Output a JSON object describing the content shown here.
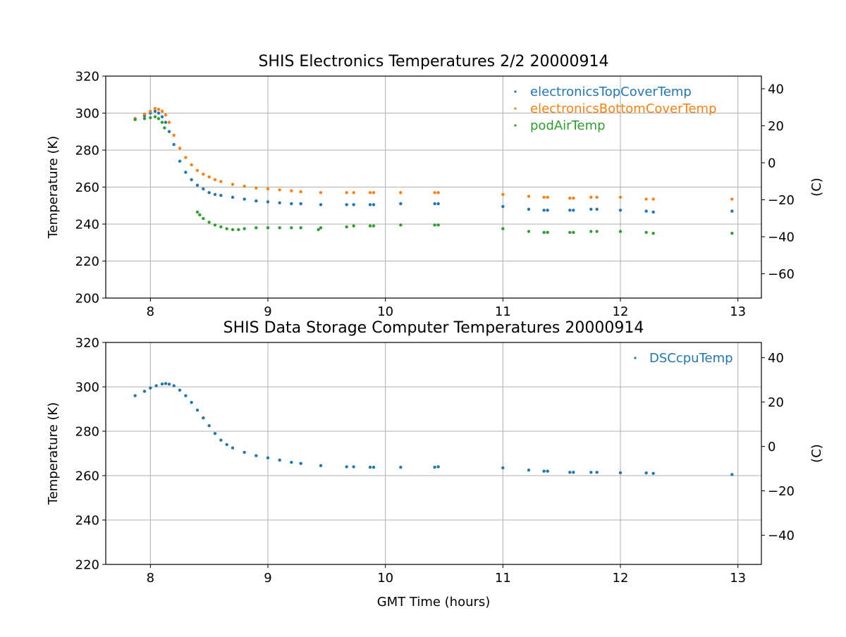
{
  "chart_data": [
    {
      "type": "scatter",
      "title": "SHIS Electronics Temperatures 2/2 20000914",
      "xlabel": "",
      "ylabel": "Temperature (K)",
      "y2label": "(C)",
      "xlim": [
        7.62,
        13.2
      ],
      "ylim": [
        200,
        320
      ],
      "y2lim": [
        -73.15,
        46.85
      ],
      "xticks": [
        8,
        9,
        10,
        11,
        12,
        13
      ],
      "yticks": [
        200,
        220,
        240,
        260,
        280,
        300,
        320
      ],
      "y2ticks": [
        -60,
        -40,
        -20,
        0,
        20,
        40
      ],
      "grid": true,
      "legend": "top-right",
      "series": [
        {
          "name": "electronicsTopCoverTemp",
          "color": "#1f77b4",
          "x": [
            7.87,
            7.95,
            8.0,
            8.04,
            8.07,
            8.1,
            8.13,
            8.16,
            8.2,
            8.25,
            8.3,
            8.35,
            8.4,
            8.45,
            8.5,
            8.55,
            8.6,
            8.7,
            8.8,
            8.9,
            9.0,
            9.1,
            9.2,
            9.28,
            9.45,
            9.67,
            9.73,
            9.87,
            9.9,
            10.13,
            10.42,
            10.45,
            11.0,
            11.22,
            11.35,
            11.38,
            11.57,
            11.6,
            11.75,
            11.8,
            12.0,
            12.22,
            12.28,
            12.95
          ],
          "y": [
            297,
            298.5,
            300,
            301,
            300,
            298,
            295,
            290,
            283,
            274,
            268,
            264,
            261,
            259,
            257,
            256,
            255.5,
            254.5,
            253.5,
            252.5,
            252,
            251.5,
            251,
            251,
            250.5,
            250.5,
            250.5,
            250.5,
            250.5,
            251,
            251,
            251,
            249.5,
            248,
            247.5,
            247.5,
            247.5,
            247.5,
            248,
            248,
            247.5,
            247,
            246.5,
            247
          ]
        },
        {
          "name": "electronicsBottomCoverTemp",
          "color": "#ff7f0e",
          "x": [
            7.87,
            7.95,
            8.0,
            8.04,
            8.07,
            8.1,
            8.13,
            8.16,
            8.2,
            8.25,
            8.3,
            8.35,
            8.4,
            8.45,
            8.5,
            8.55,
            8.6,
            8.7,
            8.8,
            8.9,
            9.0,
            9.1,
            9.2,
            9.28,
            9.45,
            9.67,
            9.73,
            9.87,
            9.9,
            10.13,
            10.42,
            10.45,
            11.0,
            11.22,
            11.35,
            11.38,
            11.57,
            11.6,
            11.75,
            11.8,
            12.0,
            12.22,
            12.28,
            12.95
          ],
          "y": [
            297,
            299.5,
            301,
            302.5,
            302,
            301,
            299,
            295,
            288,
            281,
            276,
            272,
            269,
            267,
            265.5,
            264,
            263,
            261.5,
            260.5,
            259.5,
            259,
            258.5,
            258,
            257.5,
            257,
            257,
            257,
            257,
            257,
            257,
            257,
            257,
            256,
            255,
            254.5,
            254.5,
            254,
            254,
            254.5,
            254.5,
            254.5,
            253.5,
            253.5,
            253.5
          ]
        },
        {
          "name": "podAirTemp",
          "color": "#2ca02c",
          "x": [
            7.87,
            7.95,
            8.0,
            8.04,
            8.07,
            8.1,
            8.12,
            8.4,
            8.42,
            8.45,
            8.5,
            8.55,
            8.6,
            8.65,
            8.7,
            8.75,
            8.8,
            8.9,
            9.0,
            9.1,
            9.2,
            9.28,
            9.43,
            9.45,
            9.67,
            9.73,
            9.87,
            9.9,
            10.13,
            10.42,
            10.45,
            11.0,
            11.22,
            11.35,
            11.38,
            11.57,
            11.6,
            11.75,
            11.8,
            12.0,
            12.22,
            12.28,
            12.95
          ],
          "y": [
            296.5,
            297,
            297.5,
            298,
            297,
            295,
            292,
            246.5,
            245,
            243,
            241,
            239.5,
            238.5,
            237.5,
            237,
            237,
            237.5,
            238,
            238,
            238,
            238,
            238,
            237,
            238,
            238.5,
            239,
            239,
            239,
            239.5,
            239.5,
            239.5,
            237.5,
            236,
            235.5,
            235.5,
            235.5,
            235.5,
            236,
            236,
            236,
            235.5,
            235,
            235
          ]
        }
      ]
    },
    {
      "type": "scatter",
      "title": "SHIS Data Storage Computer Temperatures 20000914",
      "xlabel": "GMT Time (hours)",
      "ylabel": "Temperature (K)",
      "y2label": "(C)",
      "xlim": [
        7.62,
        13.2
      ],
      "ylim": [
        220,
        320
      ],
      "y2lim": [
        -53.15,
        46.85
      ],
      "xticks": [
        8,
        9,
        10,
        11,
        12,
        13
      ],
      "yticks": [
        220,
        240,
        260,
        280,
        300,
        320
      ],
      "y2ticks": [
        -40,
        -20,
        0,
        20,
        40
      ],
      "grid": true,
      "legend": "top-right",
      "series": [
        {
          "name": "DSCcpuTemp",
          "color": "#1f77b4",
          "x": [
            7.87,
            7.95,
            8.0,
            8.05,
            8.1,
            8.13,
            8.16,
            8.2,
            8.25,
            8.3,
            8.35,
            8.4,
            8.45,
            8.5,
            8.55,
            8.6,
            8.65,
            8.7,
            8.8,
            8.9,
            9.0,
            9.1,
            9.2,
            9.28,
            9.45,
            9.67,
            9.73,
            9.87,
            9.9,
            10.13,
            10.42,
            10.45,
            11.0,
            11.22,
            11.35,
            11.38,
            11.57,
            11.6,
            11.75,
            11.8,
            12.0,
            12.22,
            12.28,
            12.95
          ],
          "y": [
            296,
            298,
            299.5,
            300.5,
            301.3,
            301.5,
            301.2,
            300.5,
            298.5,
            296,
            293,
            289.5,
            286,
            282.5,
            279,
            276,
            274,
            272.5,
            270.5,
            269,
            268,
            267,
            266,
            265.5,
            264.5,
            264,
            264,
            263.8,
            263.8,
            263.8,
            263.8,
            264,
            263.5,
            262.5,
            262,
            262,
            261.5,
            261.5,
            261.5,
            261.5,
            261.3,
            261.2,
            261,
            260.5
          ]
        }
      ]
    }
  ]
}
